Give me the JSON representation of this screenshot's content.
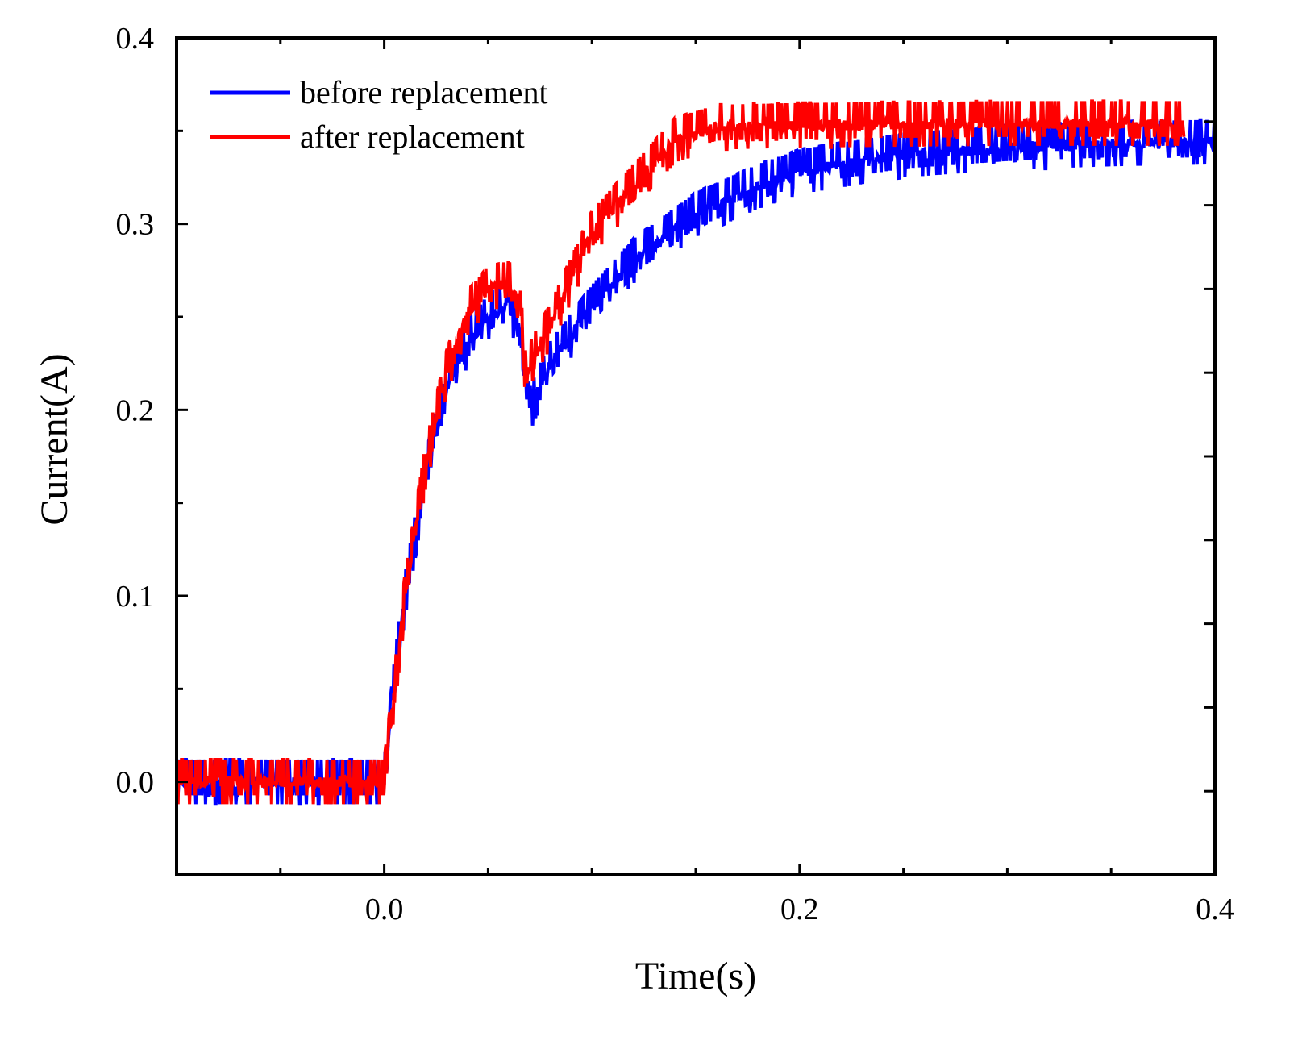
{
  "chart_data": {
    "type": "line",
    "title": "",
    "xlabel": "Time(s)",
    "ylabel": "Current(A)",
    "xlim": [
      -0.1,
      0.4
    ],
    "ylim": [
      -0.05,
      0.4
    ],
    "xticks": [
      0.0,
      0.2,
      0.4
    ],
    "xtick_labels": [
      "0.0",
      "0.2",
      "0.4"
    ],
    "yticks": [
      0.0,
      0.1,
      0.2,
      0.3,
      0.4
    ],
    "ytick_labels": [
      "0.0",
      "0.1",
      "0.2",
      "0.3",
      "0.4"
    ],
    "grid": false,
    "legend_position": "top-left",
    "series": [
      {
        "name": "before replacement",
        "color": "#0000ff",
        "x": [
          -0.1,
          -0.05,
          -0.001,
          0.0,
          0.005,
          0.01,
          0.02,
          0.03,
          0.04,
          0.05,
          0.06,
          0.065,
          0.07,
          0.08,
          0.1,
          0.12,
          0.15,
          0.18,
          0.2,
          0.25,
          0.3,
          0.35,
          0.4
        ],
        "y": [
          0.0,
          0.0,
          0.0,
          0.0,
          0.055,
          0.1,
          0.165,
          0.21,
          0.235,
          0.25,
          0.255,
          0.245,
          0.2,
          0.225,
          0.255,
          0.28,
          0.305,
          0.32,
          0.328,
          0.337,
          0.341,
          0.343,
          0.344
        ],
        "noise": 0.012
      },
      {
        "name": "after replacement",
        "color": "#ff0000",
        "x": [
          -0.1,
          -0.05,
          -0.001,
          0.0,
          0.005,
          0.01,
          0.02,
          0.03,
          0.04,
          0.05,
          0.06,
          0.065,
          0.068,
          0.075,
          0.08,
          0.09,
          0.1,
          0.12,
          0.14,
          0.16,
          0.2,
          0.3,
          0.385
        ],
        "y": [
          0.0,
          0.0,
          0.0,
          0.0,
          0.05,
          0.1,
          0.17,
          0.22,
          0.252,
          0.265,
          0.268,
          0.26,
          0.22,
          0.235,
          0.245,
          0.27,
          0.295,
          0.32,
          0.345,
          0.352,
          0.353,
          0.354,
          0.354
        ],
        "noise": 0.012
      }
    ]
  }
}
